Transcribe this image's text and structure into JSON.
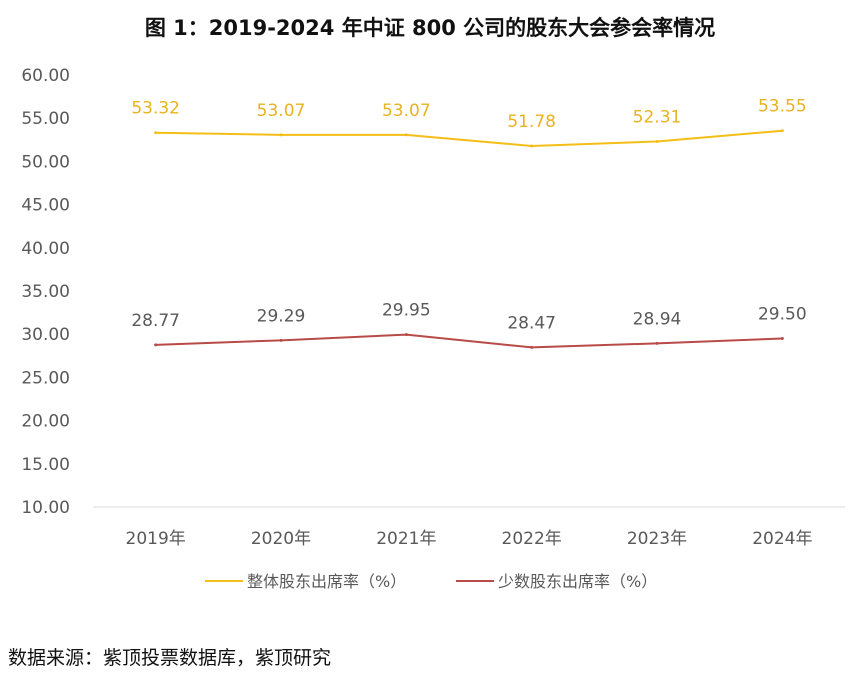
{
  "chart_data": {
    "type": "line",
    "title": "图 1：2019-2024 年中证 800 公司的股东大会参会率情况",
    "categories": [
      "2019年",
      "2020年",
      "2021年",
      "2022年",
      "2023年",
      "2024年"
    ],
    "ylim": [
      10,
      60
    ],
    "yticks": [
      "10.00",
      "15.00",
      "20.00",
      "25.00",
      "30.00",
      "35.00",
      "40.00",
      "45.00",
      "50.00",
      "55.00",
      "60.00"
    ],
    "grid": false,
    "legend_position": "bottom",
    "series": [
      {
        "name": "整体股东出席率（%）",
        "values": [
          53.32,
          53.07,
          53.07,
          51.78,
          52.31,
          53.55
        ],
        "labels": [
          "53.32",
          "53.07",
          "53.07",
          "51.78",
          "52.31",
          "53.55"
        ],
        "color": "#F5BE16",
        "label_color": "#E8B320"
      },
      {
        "name": "少数股东出席率（%）",
        "values": [
          28.77,
          29.29,
          29.95,
          28.47,
          28.94,
          29.5
        ],
        "labels": [
          "28.77",
          "29.29",
          "29.95",
          "28.47",
          "28.94",
          "29.50"
        ],
        "color": "#B84A48",
        "label_color": "#595959"
      }
    ]
  },
  "source": "数据来源：紫顶投票数据库，紫顶研究"
}
